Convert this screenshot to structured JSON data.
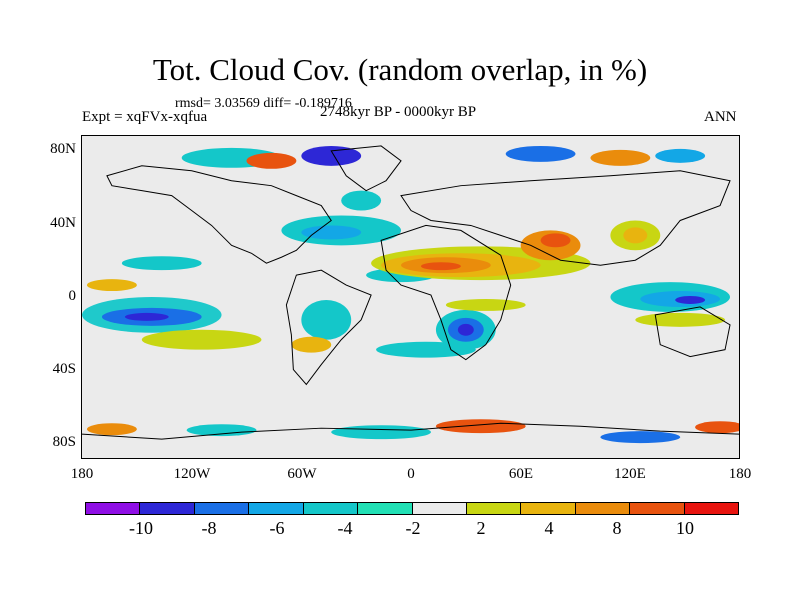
{
  "title": "Tot. Cloud Cov. (random overlap, in %)",
  "stats": "rmsd= 3.03569 diff= -0.189716",
  "experiment": "Expt = xqFVx-xqfua",
  "period": "2748kyr BP - 0000kyr BP",
  "season": "ANN",
  "lat_labels": [
    "80N",
    "40N",
    "0",
    "40S",
    "80S"
  ],
  "lon_labels": [
    "180",
    "120W",
    "60W",
    "0",
    "60E",
    "120E",
    "180"
  ],
  "colorbar": {
    "colors": [
      "#8f0fe5",
      "#2d27d6",
      "#1a6fe6",
      "#13a7e6",
      "#14c7c9",
      "#21e0b5",
      "#ebebeb",
      "#c8d613",
      "#e8b40f",
      "#ea8c0c",
      "#e8530f",
      "#e8140f"
    ],
    "labels": [
      "-10",
      "-8",
      "-6",
      "-4",
      "-2",
      "2",
      "4",
      "8",
      "10"
    ]
  }
}
